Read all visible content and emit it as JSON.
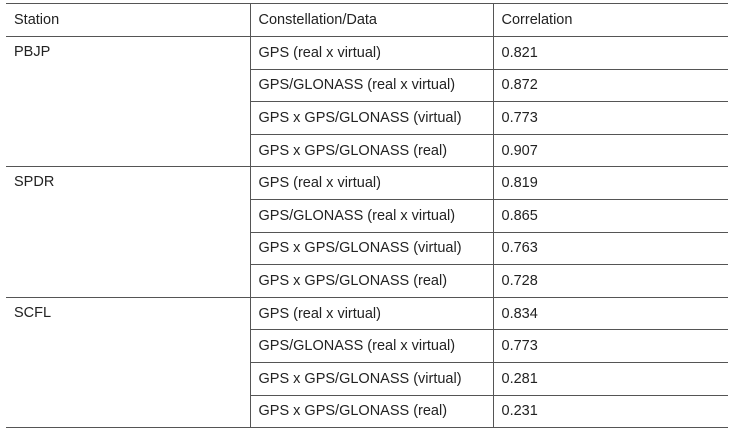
{
  "table": {
    "header": [
      "Station",
      "Constellation/Data",
      "Correlation"
    ],
    "groups": [
      {
        "station": "PBJP",
        "rows": [
          [
            "GPS (real x virtual)",
            0.821
          ],
          [
            "GPS/GLONASS (real x virtual)",
            0.872
          ],
          [
            "GPS x GPS/GLONASS (virtual)",
            0.773
          ],
          [
            "GPS x GPS/GLONASS (real)",
            0.907
          ]
        ]
      },
      {
        "station": "SPDR",
        "rows": [
          [
            "GPS (real x virtual)",
            0.819
          ],
          [
            "GPS/GLONASS (real x virtual)",
            0.865
          ],
          [
            "GPS x GPS/GLONASS (virtual)",
            0.763
          ],
          [
            "GPS x GPS/GLONASS (real)",
            0.728
          ]
        ]
      },
      {
        "station": "SCFL",
        "rows": [
          [
            "GPS (real x virtual)",
            0.834
          ],
          [
            "GPS/GLONASS (real x virtual)",
            0.773
          ],
          [
            "GPS x GPS/GLONASS (virtual)",
            0.281
          ],
          [
            "GPS x GPS/GLONASS (real)",
            0.231
          ]
        ]
      }
    ]
  }
}
